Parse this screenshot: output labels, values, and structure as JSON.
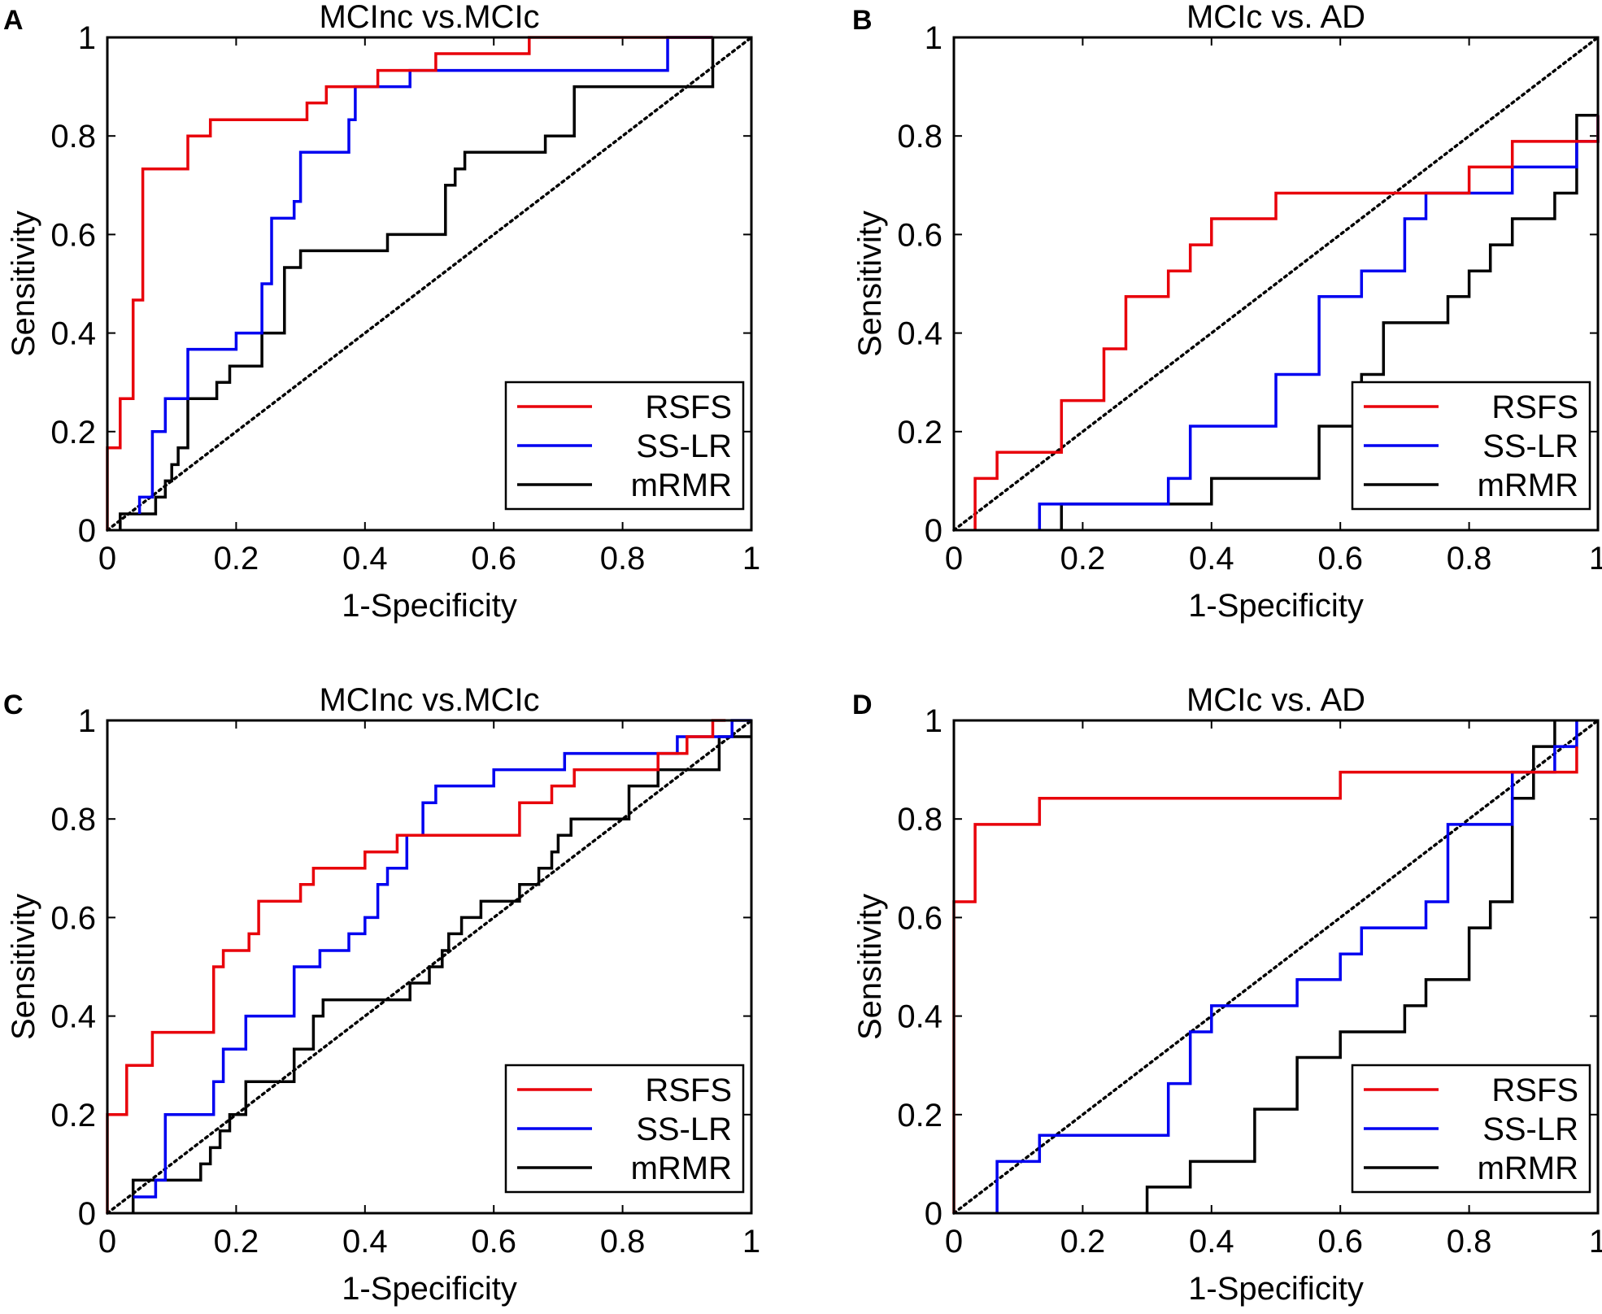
{
  "colors": {
    "RSFS": "#e8000a",
    "SS-LR": "#0000f0",
    "mRMR": "#000000",
    "chance": "#000000"
  },
  "chart_data": [
    {
      "panel_letter": "A",
      "type": "line",
      "title": "MCInc vs.MCIc",
      "xlabel": "1-Specificity",
      "ylabel": "Sensitivity",
      "xlim": [
        0,
        1
      ],
      "ylim": [
        0,
        1
      ],
      "xticks": [
        "0",
        "0.2",
        "0.4",
        "0.6",
        "0.8",
        "1"
      ],
      "yticks": [
        "0",
        "0.2",
        "0.4",
        "0.6",
        "0.8",
        "1"
      ],
      "legend": [
        "RSFS",
        "SS-LR",
        "mRMR"
      ],
      "legend_position": "bottom-right",
      "diagonal": true,
      "series": [
        {
          "name": "RSFS",
          "x": [
            0,
            0,
            0.02,
            0.02,
            0.04,
            0.04,
            0.055,
            0.055,
            0.055,
            0.055,
            0.125,
            0.125,
            0.16,
            0.16,
            0.31,
            0.31,
            0.34,
            0.34,
            0.38,
            0.38,
            0.42,
            0.42,
            0.51,
            0.51,
            0.655,
            0.655,
            0.94,
            0.94
          ],
          "y": [
            0,
            0.167,
            0.167,
            0.267,
            0.267,
            0.467,
            0.467,
            0.733,
            0.733,
            0.733,
            0.733,
            0.8,
            0.8,
            0.833,
            0.833,
            0.867,
            0.867,
            0.9,
            0.9,
            0.9,
            0.9,
            0.933,
            0.933,
            0.967,
            0.967,
            1,
            1,
            1
          ]
        },
        {
          "name": "SS-LR",
          "x": [
            0.05,
            0.05,
            0.06,
            0.06,
            0.07,
            0.07,
            0.09,
            0.09,
            0.125,
            0.125,
            0.2,
            0.2,
            0.24,
            0.24,
            0.255,
            0.255,
            0.29,
            0.29,
            0.3,
            0.3,
            0.375,
            0.375,
            0.385,
            0.385,
            0.4,
            0.4,
            0.47,
            0.47,
            0.87,
            0.87,
            0.94
          ],
          "y": [
            0.033,
            0.067,
            0.067,
            0.067,
            0.067,
            0.2,
            0.2,
            0.267,
            0.267,
            0.367,
            0.367,
            0.4,
            0.4,
            0.5,
            0.5,
            0.633,
            0.633,
            0.667,
            0.667,
            0.767,
            0.767,
            0.833,
            0.833,
            0.9,
            0.9,
            0.9,
            0.9,
            0.933,
            0.933,
            1,
            1
          ]
        },
        {
          "name": "mRMR",
          "x": [
            0.02,
            0.02,
            0.075,
            0.075,
            0.09,
            0.09,
            0.1,
            0.1,
            0.11,
            0.11,
            0.125,
            0.125,
            0.17,
            0.17,
            0.19,
            0.19,
            0.24,
            0.24,
            0.275,
            0.275,
            0.3,
            0.3,
            0.435,
            0.435,
            0.525,
            0.525,
            0.54,
            0.54,
            0.555,
            0.555,
            0.68,
            0.68,
            0.725,
            0.725,
            0.94,
            0.94
          ],
          "y": [
            0,
            0.033,
            0.033,
            0.067,
            0.067,
            0.1,
            0.1,
            0.133,
            0.133,
            0.167,
            0.167,
            0.267,
            0.267,
            0.3,
            0.3,
            0.333,
            0.333,
            0.4,
            0.4,
            0.533,
            0.533,
            0.567,
            0.567,
            0.6,
            0.6,
            0.7,
            0.7,
            0.733,
            0.733,
            0.767,
            0.767,
            0.8,
            0.8,
            0.9,
            0.9,
            1
          ]
        }
      ]
    },
    {
      "panel_letter": "B",
      "type": "line",
      "title": "MCIc vs. AD",
      "xlabel": "1-Specificity",
      "ylabel": "Sensitivity",
      "xlim": [
        0,
        1
      ],
      "ylim": [
        0,
        1
      ],
      "xticks": [
        "0",
        "0.2",
        "0.4",
        "0.6",
        "0.8",
        "1"
      ],
      "yticks": [
        "0",
        "0.2",
        "0.4",
        "0.6",
        "0.8",
        "1"
      ],
      "legend": [
        "RSFS",
        "SS-LR",
        "mRMR"
      ],
      "legend_position": "bottom-right",
      "diagonal": true,
      "series": [
        {
          "name": "RSFS",
          "x": [
            0.033,
            0.033,
            0.067,
            0.067,
            0.167,
            0.167,
            0.233,
            0.233,
            0.267,
            0.267,
            0.333,
            0.333,
            0.367,
            0.367,
            0.4,
            0.4,
            0.5,
            0.5,
            0.8,
            0.8,
            0.867,
            0.867,
            1,
            1
          ],
          "y": [
            0,
            0.105,
            0.105,
            0.158,
            0.158,
            0.263,
            0.263,
            0.368,
            0.368,
            0.474,
            0.474,
            0.526,
            0.526,
            0.579,
            0.579,
            0.632,
            0.632,
            0.684,
            0.684,
            0.737,
            0.737,
            0.789,
            0.789,
            0.842
          ]
        },
        {
          "name": "SS-LR",
          "x": [
            0.133,
            0.133,
            0.167,
            0.167,
            0.333,
            0.333,
            0.367,
            0.367,
            0.5,
            0.5,
            0.567,
            0.567,
            0.633,
            0.633,
            0.7,
            0.7,
            0.733,
            0.733,
            0.867,
            0.867,
            0.967,
            0.967,
            1,
            1
          ],
          "y": [
            0,
            0.053,
            0.053,
            0.053,
            0.053,
            0.105,
            0.105,
            0.211,
            0.211,
            0.316,
            0.316,
            0.474,
            0.474,
            0.526,
            0.526,
            0.632,
            0.632,
            0.684,
            0.684,
            0.737,
            0.737,
            0.789,
            0.789,
            0.842
          ]
        },
        {
          "name": "mRMR",
          "x": [
            0.167,
            0.167,
            0.4,
            0.4,
            0.567,
            0.567,
            0.633,
            0.633,
            0.667,
            0.667,
            0.767,
            0.767,
            0.8,
            0.8,
            0.833,
            0.833,
            0.867,
            0.867,
            0.933,
            0.933,
            0.967,
            0.967,
            1
          ],
          "y": [
            0,
            0.053,
            0.053,
            0.105,
            0.105,
            0.211,
            0.211,
            0.316,
            0.316,
            0.421,
            0.421,
            0.474,
            0.474,
            0.526,
            0.526,
            0.579,
            0.579,
            0.632,
            0.632,
            0.684,
            0.684,
            0.842,
            0.842
          ]
        }
      ]
    },
    {
      "panel_letter": "C",
      "type": "line",
      "title": "MCInc vs.MCIc",
      "xlabel": "1-Specificity",
      "ylabel": "Sensitivity",
      "xlim": [
        0,
        1
      ],
      "ylim": [
        0,
        1
      ],
      "xticks": [
        "0",
        "0.2",
        "0.4",
        "0.6",
        "0.8",
        "1"
      ],
      "yticks": [
        "0",
        "0.2",
        "0.4",
        "0.6",
        "0.8",
        "1"
      ],
      "legend": [
        "RSFS",
        "SS-LR",
        "mRMR"
      ],
      "legend_position": "bottom-right",
      "diagonal": true,
      "series": [
        {
          "name": "RSFS",
          "x": [
            0,
            0,
            0.03,
            0.03,
            0.07,
            0.07,
            0.165,
            0.165,
            0.18,
            0.18,
            0.22,
            0.22,
            0.235,
            0.235,
            0.3,
            0.3,
            0.32,
            0.32,
            0.4,
            0.4,
            0.45,
            0.45,
            0.64,
            0.64,
            0.69,
            0.69,
            0.725,
            0.725,
            0.855,
            0.855,
            0.9,
            0.9,
            0.94,
            0.94,
            0.96
          ],
          "y": [
            0,
            0.2,
            0.2,
            0.3,
            0.3,
            0.367,
            0.367,
            0.5,
            0.5,
            0.533,
            0.533,
            0.567,
            0.567,
            0.633,
            0.633,
            0.667,
            0.667,
            0.7,
            0.7,
            0.733,
            0.733,
            0.767,
            0.767,
            0.833,
            0.833,
            0.867,
            0.867,
            0.9,
            0.9,
            0.933,
            0.933,
            0.967,
            0.967,
            1,
            1
          ]
        },
        {
          "name": "SS-LR",
          "x": [
            0.04,
            0.04,
            0.075,
            0.075,
            0.09,
            0.09,
            0.165,
            0.165,
            0.18,
            0.18,
            0.215,
            0.215,
            0.29,
            0.29,
            0.33,
            0.33,
            0.375,
            0.375,
            0.4,
            0.4,
            0.42,
            0.42,
            0.435,
            0.435,
            0.465,
            0.465,
            0.49,
            0.49,
            0.5,
            0.5,
            0.51,
            0.51,
            0.6,
            0.6,
            0.71,
            0.71,
            0.885,
            0.885,
            0.945,
            0.945,
            0.97,
            0.97,
            1
          ],
          "y": [
            0.033,
            0.033,
            0.033,
            0.067,
            0.067,
            0.2,
            0.2,
            0.267,
            0.267,
            0.333,
            0.333,
            0.4,
            0.4,
            0.5,
            0.5,
            0.533,
            0.533,
            0.567,
            0.567,
            0.6,
            0.6,
            0.667,
            0.667,
            0.7,
            0.7,
            0.767,
            0.767,
            0.833,
            0.833,
            0.833,
            0.833,
            0.867,
            0.867,
            0.9,
            0.9,
            0.933,
            0.933,
            0.967,
            0.967,
            0.967,
            0.967,
            1,
            1
          ]
        },
        {
          "name": "mRMR",
          "x": [
            0.04,
            0.04,
            0.145,
            0.145,
            0.16,
            0.16,
            0.175,
            0.175,
            0.19,
            0.19,
            0.215,
            0.215,
            0.29,
            0.29,
            0.32,
            0.32,
            0.335,
            0.335,
            0.47,
            0.47,
            0.5,
            0.5,
            0.52,
            0.52,
            0.53,
            0.53,
            0.55,
            0.55,
            0.58,
            0.58,
            0.64,
            0.64,
            0.67,
            0.67,
            0.69,
            0.69,
            0.7,
            0.7,
            0.72,
            0.72,
            0.81,
            0.81,
            0.855,
            0.855,
            0.95,
            0.95,
            0.97,
            0.97,
            1
          ],
          "y": [
            0,
            0.067,
            0.067,
            0.1,
            0.1,
            0.133,
            0.133,
            0.167,
            0.167,
            0.2,
            0.2,
            0.267,
            0.267,
            0.333,
            0.333,
            0.4,
            0.4,
            0.433,
            0.433,
            0.467,
            0.467,
            0.5,
            0.5,
            0.533,
            0.533,
            0.567,
            0.567,
            0.6,
            0.6,
            0.633,
            0.633,
            0.667,
            0.667,
            0.7,
            0.7,
            0.733,
            0.733,
            0.767,
            0.767,
            0.8,
            0.8,
            0.867,
            0.867,
            0.9,
            0.9,
            0.967,
            0.967,
            0.967,
            0.967
          ]
        }
      ]
    },
    {
      "panel_letter": "D",
      "type": "line",
      "title": "MCIc vs. AD",
      "xlabel": "1-Specificity",
      "ylabel": "Sensitivity",
      "xlim": [
        0,
        1
      ],
      "ylim": [
        0,
        1
      ],
      "xticks": [
        "0",
        "0.2",
        "0.4",
        "0.6",
        "0.8",
        "1"
      ],
      "yticks": [
        "0",
        "0.2",
        "0.4",
        "0.6",
        "0.8",
        "1"
      ],
      "legend": [
        "RSFS",
        "SS-LR",
        "mRMR"
      ],
      "legend_position": "bottom-right",
      "diagonal": true,
      "series": [
        {
          "name": "RSFS",
          "x": [
            0,
            0,
            0.033,
            0.033,
            0.133,
            0.133,
            0.6,
            0.6,
            0.967,
            0.967
          ],
          "y": [
            0,
            0.632,
            0.632,
            0.789,
            0.789,
            0.842,
            0.842,
            0.895,
            0.895,
            0.947
          ]
        },
        {
          "name": "SS-LR",
          "x": [
            0.067,
            0.067,
            0.133,
            0.133,
            0.333,
            0.333,
            0.367,
            0.367,
            0.4,
            0.4,
            0.533,
            0.533,
            0.6,
            0.6,
            0.633,
            0.633,
            0.733,
            0.733,
            0.767,
            0.767,
            0.867,
            0.867,
            0.933,
            0.933,
            0.967,
            0.967
          ],
          "y": [
            0,
            0.105,
            0.105,
            0.158,
            0.158,
            0.263,
            0.263,
            0.368,
            0.368,
            0.421,
            0.421,
            0.474,
            0.474,
            0.526,
            0.526,
            0.579,
            0.579,
            0.632,
            0.632,
            0.789,
            0.789,
            0.895,
            0.895,
            0.947,
            0.947,
            1
          ]
        },
        {
          "name": "mRMR",
          "x": [
            0.3,
            0.3,
            0.367,
            0.367,
            0.4,
            0.4,
            0.467,
            0.467,
            0.533,
            0.533,
            0.6,
            0.6,
            0.7,
            0.7,
            0.733,
            0.733,
            0.8,
            0.8,
            0.833,
            0.833,
            0.867,
            0.867,
            0.9,
            0.9,
            0.933,
            0.933
          ],
          "y": [
            0,
            0.053,
            0.053,
            0.105,
            0.105,
            0.105,
            0.105,
            0.211,
            0.211,
            0.316,
            0.316,
            0.368,
            0.368,
            0.421,
            0.421,
            0.474,
            0.474,
            0.579,
            0.579,
            0.632,
            0.632,
            0.842,
            0.842,
            0.947,
            0.947,
            1
          ]
        }
      ]
    }
  ]
}
